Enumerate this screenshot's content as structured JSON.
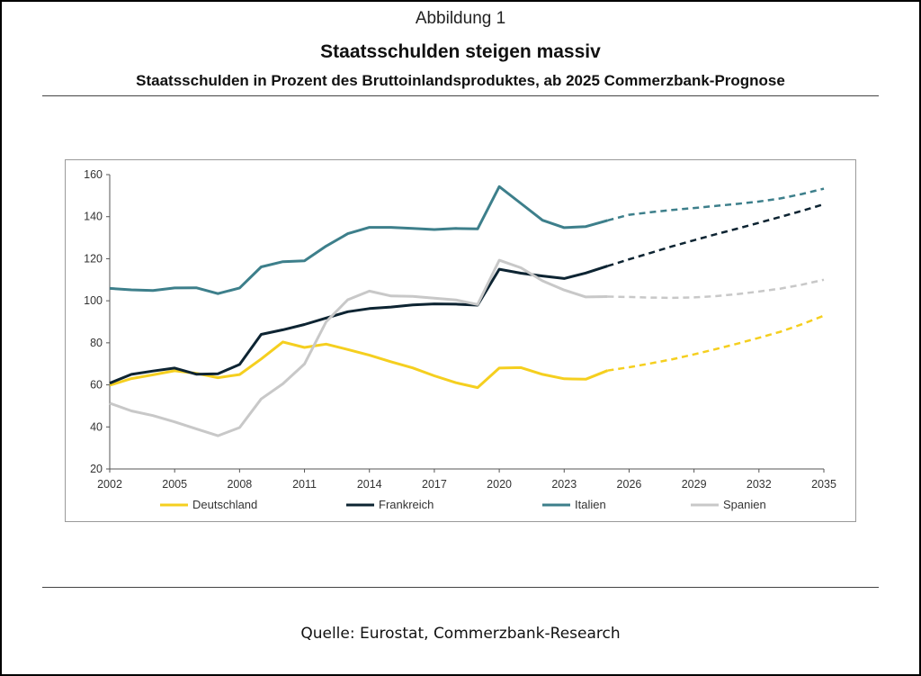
{
  "header": {
    "figure_label": "Abbildung 1",
    "title": "Staatsschulden steigen massiv",
    "subtitle": "Staatsschulden in Prozent des Bruttoinlandsproduktes, ab 2025 Commerzbank-Prognose"
  },
  "footer": {
    "source": "Quelle: Eurostat, Commerzbank-Research"
  },
  "chart_data": {
    "type": "line",
    "xlim": [
      2002,
      2035
    ],
    "ylim": [
      20,
      160
    ],
    "x_ticks": [
      2002,
      2005,
      2008,
      2011,
      2014,
      2017,
      2020,
      2023,
      2026,
      2029,
      2032,
      2035
    ],
    "y_ticks": [
      20,
      40,
      60,
      80,
      100,
      120,
      140,
      160
    ],
    "forecast_from": 2025,
    "legend_position": "bottom",
    "grid": false,
    "series": [
      {
        "name": "Deutschland",
        "color": "#f5cf1f",
        "x": [
          2002,
          2003,
          2004,
          2005,
          2006,
          2007,
          2008,
          2009,
          2010,
          2011,
          2012,
          2013,
          2014,
          2015,
          2016,
          2017,
          2018,
          2019,
          2020,
          2021,
          2022,
          2023,
          2024,
          2025,
          2026,
          2027,
          2028,
          2029,
          2030,
          2031,
          2032,
          2033,
          2034,
          2035
        ],
        "values": [
          59.8,
          63,
          64.8,
          66.7,
          65.5,
          63.4,
          64.9,
          72.3,
          80.4,
          77.8,
          79.4,
          76.8,
          74.1,
          71,
          68.1,
          64.3,
          61,
          58.7,
          68,
          68.2,
          65,
          62.9,
          62.7,
          66.8,
          68.4,
          70.2,
          72.2,
          74.5,
          77,
          79.6,
          82.4,
          85.3,
          88.9,
          92.9
        ]
      },
      {
        "name": "Frankreich",
        "color": "#0d2432",
        "x": [
          2002,
          2003,
          2004,
          2005,
          2006,
          2007,
          2008,
          2009,
          2010,
          2011,
          2012,
          2013,
          2014,
          2015,
          2016,
          2017,
          2018,
          2019,
          2020,
          2021,
          2022,
          2023,
          2024,
          2025,
          2026,
          2027,
          2028,
          2029,
          2030,
          2031,
          2032,
          2033,
          2034,
          2035
        ],
        "values": [
          60.8,
          65,
          66.6,
          68,
          65.1,
          65.3,
          69.7,
          84,
          86.2,
          88.7,
          91.8,
          94.8,
          96.3,
          97,
          98,
          98.5,
          98.4,
          97.9,
          115,
          113.1,
          111.8,
          110.6,
          113.2,
          116.5,
          119.7,
          122.8,
          125.9,
          128.8,
          131.6,
          134.3,
          137.1,
          139.9,
          142.8,
          145.9
        ]
      },
      {
        "name": "Italien",
        "color": "#3d7f8b",
        "x": [
          2002,
          2003,
          2004,
          2005,
          2006,
          2007,
          2008,
          2009,
          2010,
          2011,
          2012,
          2013,
          2014,
          2015,
          2016,
          2017,
          2018,
          2019,
          2020,
          2021,
          2022,
          2023,
          2024,
          2025,
          2026,
          2027,
          2028,
          2029,
          2030,
          2031,
          2032,
          2033,
          2034,
          2035
        ],
        "values": [
          105.9,
          105.2,
          104.9,
          106.1,
          106.2,
          103.4,
          106.1,
          116.1,
          118.6,
          119,
          126,
          131.9,
          134.9,
          134.9,
          134.4,
          133.9,
          134.4,
          134.2,
          154.3,
          146.3,
          138.3,
          134.8,
          135.3,
          138.2,
          140.9,
          142.1,
          143.2,
          144.1,
          145.1,
          146.1,
          147.2,
          148.7,
          150.8,
          153.3
        ]
      },
      {
        "name": "Spanien",
        "color": "#c8c8c8",
        "x": [
          2002,
          2003,
          2004,
          2005,
          2006,
          2007,
          2008,
          2009,
          2010,
          2011,
          2012,
          2013,
          2014,
          2015,
          2016,
          2017,
          2018,
          2019,
          2020,
          2021,
          2022,
          2023,
          2024,
          2025,
          2026,
          2027,
          2028,
          2029,
          2030,
          2031,
          2032,
          2033,
          2034,
          2035
        ],
        "values": [
          51.3,
          47.6,
          45.4,
          42.4,
          39.1,
          35.8,
          39.7,
          53.3,
          60.5,
          69.9,
          90,
          100.5,
          104.6,
          102.3,
          102.1,
          101.2,
          100.4,
          98.2,
          119.3,
          115.7,
          109.5,
          105.1,
          101.8,
          102,
          101.8,
          101.5,
          101.4,
          101.6,
          102.2,
          103.2,
          104.4,
          105.8,
          107.7,
          110
        ]
      }
    ]
  }
}
